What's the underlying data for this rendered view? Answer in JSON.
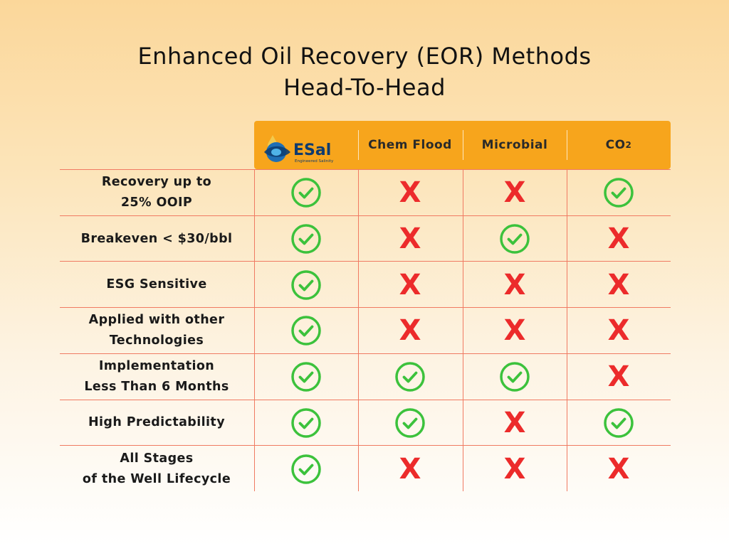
{
  "title": {
    "line1": "Enhanced Oil Recovery (EOR) Methods",
    "line2": "Head-To-Head"
  },
  "logo": {
    "name": "ESal",
    "tagline": "Engineered Salinity"
  },
  "columns": [
    {
      "label": ""
    },
    {
      "label": "Chem Flood"
    },
    {
      "label": "Microbial"
    },
    {
      "label": "CO",
      "sub": "2"
    }
  ],
  "rows": [
    {
      "label_lines": [
        "Recovery up to",
        "25% OOIP"
      ],
      "values": [
        true,
        false,
        false,
        true
      ]
    },
    {
      "label_lines": [
        "Breakeven < $30/bbl"
      ],
      "values": [
        true,
        false,
        true,
        false
      ]
    },
    {
      "label_lines": [
        "ESG Sensitive"
      ],
      "values": [
        true,
        false,
        false,
        false
      ]
    },
    {
      "label_lines": [
        "Applied with other",
        "Technologies"
      ],
      "values": [
        true,
        false,
        false,
        false
      ]
    },
    {
      "label_lines": [
        "Implementation",
        "Less Than 6 Months"
      ],
      "values": [
        true,
        true,
        true,
        false
      ]
    },
    {
      "label_lines": [
        "High Predictability"
      ],
      "values": [
        true,
        true,
        false,
        true
      ]
    },
    {
      "label_lines": [
        "All Stages",
        "of the Well Lifecycle"
      ],
      "values": [
        true,
        false,
        false,
        false
      ]
    }
  ],
  "colors": {
    "header": "#f7a51c",
    "check": "#3cc23c",
    "cross": "#ec2b2b",
    "grid": "#f07a62"
  }
}
